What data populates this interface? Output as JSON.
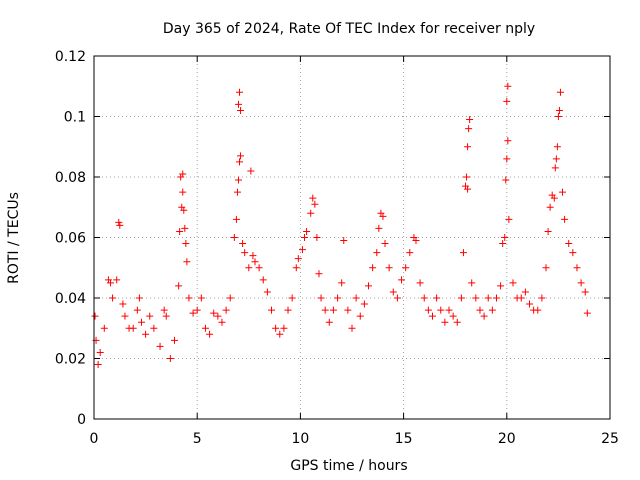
{
  "chart_data": {
    "type": "scatter",
    "title": "Day 365 of 2024, Rate Of TEC Index for receiver nply",
    "xlabel": "GPS time / hours",
    "ylabel": "ROTI / TECUs",
    "xlim": [
      0,
      25
    ],
    "ylim": [
      0,
      0.12
    ],
    "xticks": [
      0,
      5,
      10,
      15,
      20,
      25
    ],
    "yticks": [
      0,
      0.02,
      0.04,
      0.06,
      0.08,
      0.1,
      0.12
    ],
    "xtick_labels": [
      "0",
      "5",
      "10",
      "15",
      "20",
      "25"
    ],
    "ytick_labels": [
      "0",
      "0.02",
      "0.04",
      "0.06",
      "0.08",
      "0.1",
      "0.12"
    ],
    "grid": true,
    "marker": "plus",
    "color": "#ff0000",
    "series": [
      {
        "points": [
          [
            0.05,
            0.034
          ],
          [
            0.1,
            0.026
          ],
          [
            0.2,
            0.018
          ],
          [
            0.3,
            0.022
          ],
          [
            0.5,
            0.03
          ],
          [
            0.7,
            0.046
          ],
          [
            0.8,
            0.045
          ],
          [
            0.9,
            0.04
          ],
          [
            1.1,
            0.046
          ],
          [
            1.2,
            0.065
          ],
          [
            1.25,
            0.064
          ],
          [
            1.4,
            0.038
          ],
          [
            1.5,
            0.034
          ],
          [
            1.7,
            0.03
          ],
          [
            1.9,
            0.03
          ],
          [
            2.1,
            0.036
          ],
          [
            2.2,
            0.04
          ],
          [
            2.3,
            0.032
          ],
          [
            2.5,
            0.028
          ],
          [
            2.7,
            0.034
          ],
          [
            2.9,
            0.03
          ],
          [
            3.2,
            0.024
          ],
          [
            3.4,
            0.036
          ],
          [
            3.5,
            0.034
          ],
          [
            3.7,
            0.02
          ],
          [
            3.9,
            0.026
          ],
          [
            4.1,
            0.044
          ],
          [
            4.15,
            0.062
          ],
          [
            4.2,
            0.08
          ],
          [
            4.3,
            0.081
          ],
          [
            4.25,
            0.07
          ],
          [
            4.35,
            0.069
          ],
          [
            4.3,
            0.075
          ],
          [
            4.4,
            0.063
          ],
          [
            4.45,
            0.058
          ],
          [
            4.5,
            0.052
          ],
          [
            4.6,
            0.04
          ],
          [
            4.8,
            0.035
          ],
          [
            5.0,
            0.036
          ],
          [
            5.2,
            0.04
          ],
          [
            5.4,
            0.03
          ],
          [
            5.6,
            0.028
          ],
          [
            5.8,
            0.035
          ],
          [
            6.0,
            0.034
          ],
          [
            6.2,
            0.032
          ],
          [
            6.4,
            0.036
          ],
          [
            6.6,
            0.04
          ],
          [
            6.8,
            0.06
          ],
          [
            6.9,
            0.066
          ],
          [
            6.95,
            0.075
          ],
          [
            7.0,
            0.079
          ],
          [
            7.05,
            0.085
          ],
          [
            7.1,
            0.087
          ],
          [
            7.0,
            0.104
          ],
          [
            7.05,
            0.108
          ],
          [
            7.1,
            0.102
          ],
          [
            7.2,
            0.058
          ],
          [
            7.3,
            0.055
          ],
          [
            7.5,
            0.05
          ],
          [
            7.6,
            0.082
          ],
          [
            7.7,
            0.054
          ],
          [
            7.8,
            0.052
          ],
          [
            8.0,
            0.05
          ],
          [
            8.2,
            0.046
          ],
          [
            8.4,
            0.042
          ],
          [
            8.6,
            0.036
          ],
          [
            8.8,
            0.03
          ],
          [
            9.0,
            0.028
          ],
          [
            9.2,
            0.03
          ],
          [
            9.4,
            0.036
          ],
          [
            9.6,
            0.04
          ],
          [
            9.8,
            0.05
          ],
          [
            9.9,
            0.053
          ],
          [
            10.1,
            0.056
          ],
          [
            10.2,
            0.06
          ],
          [
            10.3,
            0.062
          ],
          [
            10.5,
            0.068
          ],
          [
            10.6,
            0.073
          ],
          [
            10.7,
            0.071
          ],
          [
            10.8,
            0.06
          ],
          [
            10.9,
            0.048
          ],
          [
            11.0,
            0.04
          ],
          [
            11.2,
            0.036
          ],
          [
            11.4,
            0.032
          ],
          [
            11.6,
            0.036
          ],
          [
            11.8,
            0.04
          ],
          [
            12.0,
            0.045
          ],
          [
            12.1,
            0.059
          ],
          [
            12.3,
            0.036
          ],
          [
            12.5,
            0.03
          ],
          [
            12.7,
            0.04
          ],
          [
            12.9,
            0.034
          ],
          [
            13.1,
            0.038
          ],
          [
            13.3,
            0.044
          ],
          [
            13.5,
            0.05
          ],
          [
            13.7,
            0.055
          ],
          [
            13.8,
            0.063
          ],
          [
            13.9,
            0.068
          ],
          [
            14.0,
            0.067
          ],
          [
            14.1,
            0.058
          ],
          [
            14.3,
            0.05
          ],
          [
            14.5,
            0.042
          ],
          [
            14.7,
            0.04
          ],
          [
            14.9,
            0.046
          ],
          [
            15.1,
            0.05
          ],
          [
            15.3,
            0.055
          ],
          [
            15.5,
            0.06
          ],
          [
            15.6,
            0.059
          ],
          [
            15.8,
            0.045
          ],
          [
            16.0,
            0.04
          ],
          [
            16.2,
            0.036
          ],
          [
            16.4,
            0.034
          ],
          [
            16.6,
            0.04
          ],
          [
            16.8,
            0.036
          ],
          [
            17.0,
            0.032
          ],
          [
            17.2,
            0.036
          ],
          [
            17.4,
            0.034
          ],
          [
            17.6,
            0.032
          ],
          [
            17.8,
            0.04
          ],
          [
            17.9,
            0.055
          ],
          [
            18.0,
            0.077
          ],
          [
            18.05,
            0.08
          ],
          [
            18.1,
            0.076
          ],
          [
            18.1,
            0.09
          ],
          [
            18.15,
            0.096
          ],
          [
            18.2,
            0.099
          ],
          [
            18.3,
            0.045
          ],
          [
            18.5,
            0.04
          ],
          [
            18.7,
            0.036
          ],
          [
            18.9,
            0.034
          ],
          [
            19.1,
            0.04
          ],
          [
            19.3,
            0.036
          ],
          [
            19.5,
            0.04
          ],
          [
            19.7,
            0.044
          ],
          [
            19.8,
            0.058
          ],
          [
            19.9,
            0.06
          ],
          [
            19.95,
            0.079
          ],
          [
            20.0,
            0.086
          ],
          [
            20.05,
            0.092
          ],
          [
            20.0,
            0.105
          ],
          [
            20.05,
            0.11
          ],
          [
            20.1,
            0.066
          ],
          [
            20.3,
            0.045
          ],
          [
            20.5,
            0.04
          ],
          [
            20.7,
            0.04
          ],
          [
            20.9,
            0.042
          ],
          [
            21.1,
            0.038
          ],
          [
            21.3,
            0.036
          ],
          [
            21.5,
            0.036
          ],
          [
            21.7,
            0.04
          ],
          [
            21.9,
            0.05
          ],
          [
            22.0,
            0.062
          ],
          [
            22.1,
            0.07
          ],
          [
            22.2,
            0.074
          ],
          [
            22.3,
            0.073
          ],
          [
            22.35,
            0.083
          ],
          [
            22.4,
            0.086
          ],
          [
            22.45,
            0.09
          ],
          [
            22.5,
            0.1
          ],
          [
            22.55,
            0.102
          ],
          [
            22.6,
            0.108
          ],
          [
            22.7,
            0.075
          ],
          [
            22.8,
            0.066
          ],
          [
            23.0,
            0.058
          ],
          [
            23.2,
            0.055
          ],
          [
            23.4,
            0.05
          ],
          [
            23.6,
            0.045
          ],
          [
            23.8,
            0.042
          ],
          [
            23.9,
            0.035
          ]
        ]
      }
    ]
  }
}
